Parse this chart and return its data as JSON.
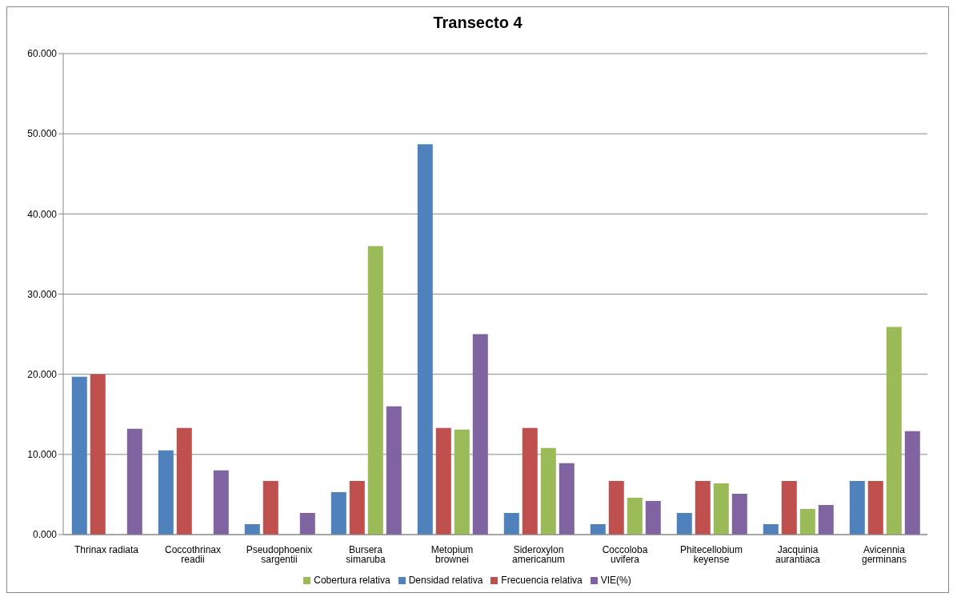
{
  "chart_data": {
    "type": "bar",
    "title": "Transecto 4",
    "categories": [
      "Thrinax radiata",
      "Coccothrinax readii",
      "Pseudophoenix sargentii",
      "Bursera simaruba",
      "Metopium brownei",
      "Sideroxylon americanum",
      "Coccoloba uvifera",
      "Phitecellobium keyense",
      "Jacquinia aurantiaca",
      "Avicennia germinans"
    ],
    "series": [
      {
        "name": "Densidad relativa",
        "color": "#4f81bd",
        "values": [
          19.7,
          10.5,
          1.3,
          5.3,
          48.7,
          2.7,
          1.3,
          2.7,
          1.3,
          6.7
        ]
      },
      {
        "name": "Frecuencia relativa",
        "color": "#c0504d",
        "values": [
          20.0,
          13.3,
          6.7,
          6.7,
          13.3,
          13.3,
          6.7,
          6.7,
          6.7,
          6.7
        ]
      },
      {
        "name": "Cobertura relativa",
        "color": "#9bbb59",
        "values": [
          0,
          0,
          0,
          36.0,
          13.1,
          10.8,
          4.6,
          6.4,
          3.2,
          25.9
        ]
      },
      {
        "name": "VIE(%)",
        "color": "#8064a2",
        "values": [
          13.2,
          8.0,
          2.7,
          16.0,
          25.0,
          8.9,
          4.2,
          5.1,
          3.7,
          12.9
        ]
      }
    ],
    "ylim": [
      0,
      60
    ],
    "yticks": [
      {
        "value": 0,
        "label": "0.000"
      },
      {
        "value": 10,
        "label": "10.000"
      },
      {
        "value": 20,
        "label": "20.000"
      },
      {
        "value": 30,
        "label": "30.000"
      },
      {
        "value": 40,
        "label": "40.000"
      },
      {
        "value": 50,
        "label": "50.000"
      },
      {
        "value": 60,
        "label": "60.000"
      }
    ],
    "grid": "y",
    "legend": "bottom"
  }
}
